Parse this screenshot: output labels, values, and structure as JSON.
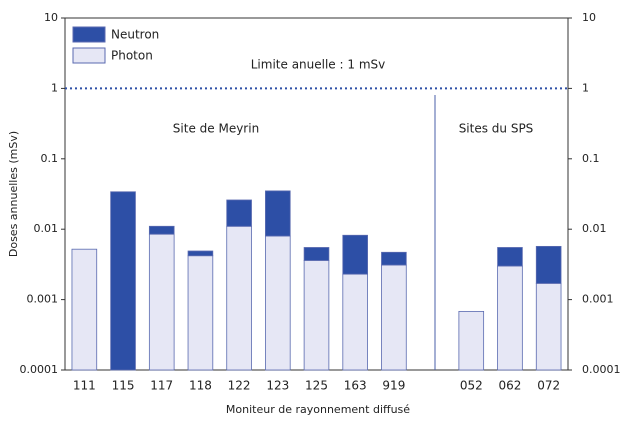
{
  "chart_data": {
    "type": "stacked_bar",
    "x_label": "Moniteur de rayonnement diffusé",
    "y_label": "Doses annuelles (mSv)",
    "categories": [
      "111",
      "115",
      "117",
      "118",
      "122",
      "123",
      "125",
      "163",
      "919",
      null,
      "052",
      "062",
      "072"
    ],
    "series": [
      {
        "name": "Photon",
        "color": "#e6e7f5",
        "values": [
          0.0052,
          0,
          0.0085,
          0.0042,
          0.011,
          0.008,
          0.0036,
          0.0023,
          0.0031,
          null,
          0.00068,
          0.003,
          0.0017
        ]
      },
      {
        "name": "Neutron",
        "color": "#2d4fa6",
        "values": [
          0,
          0.034,
          0.0025,
          0.0007,
          0.015,
          0.027,
          0.0019,
          0.0059,
          0.0016,
          null,
          0,
          0.0025,
          0.004
        ]
      }
    ],
    "log_scale": true,
    "ylim": [
      0.0001,
      10
    ],
    "yticks": [
      0.0001,
      0.001,
      0.01,
      0.1,
      1,
      10
    ],
    "y2lim": [
      0.0001,
      10
    ],
    "y2ticks": [
      0.0001,
      0.001,
      0.01,
      0.1,
      1,
      10
    ],
    "reference_line": 1,
    "annotations": [
      "Limite anuelle : 1 mSv",
      "Site de Meyrin",
      "Sites du SPS"
    ],
    "legend": "top-left"
  }
}
